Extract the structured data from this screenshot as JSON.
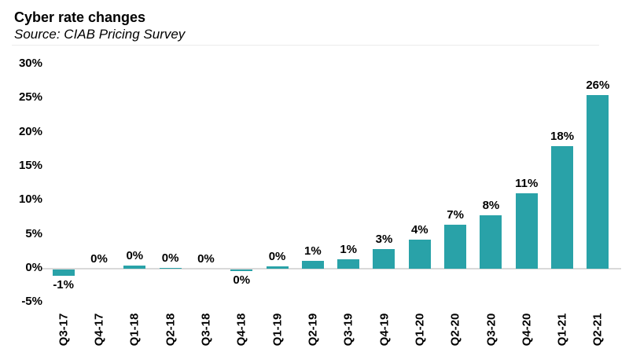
{
  "chart_data": {
    "type": "bar",
    "title": "Cyber rate changes",
    "subtitle": "Source: CIAB Pricing Survey",
    "categories": [
      "Q3-17",
      "Q4-17",
      "Q1-18",
      "Q2-18",
      "Q3-18",
      "Q4-18",
      "Q1-19",
      "Q2-19",
      "Q3-19",
      "Q4-19",
      "Q1-20",
      "Q2-20",
      "Q3-20",
      "Q4-20",
      "Q1-21",
      "Q2-21"
    ],
    "values": [
      -0.9,
      0,
      0.5,
      0.15,
      0,
      -0.25,
      0.4,
      1.2,
      1.4,
      2.9,
      4.3,
      6.5,
      7.8,
      11.1,
      18,
      25.5
    ],
    "labels": [
      "-1%",
      "0%",
      "0%",
      "0%",
      "0%",
      "0%",
      "0%",
      "1%",
      "1%",
      "3%",
      "4%",
      "7%",
      "8%",
      "11%",
      "18%",
      "26%"
    ],
    "xlabel": "",
    "ylabel": "",
    "ylim": [
      -5,
      30
    ],
    "y_ticks": [
      "30%",
      "25%",
      "20%",
      "15%",
      "10%",
      "5%",
      "0%",
      "-5%"
    ],
    "y_tick_values": [
      30,
      25,
      20,
      15,
      10,
      5,
      0,
      -5
    ],
    "grid": false,
    "legend": false,
    "bar_color": "#29a2a8",
    "axis_line_color": "#d9d9d9",
    "text_color": "#000000"
  }
}
